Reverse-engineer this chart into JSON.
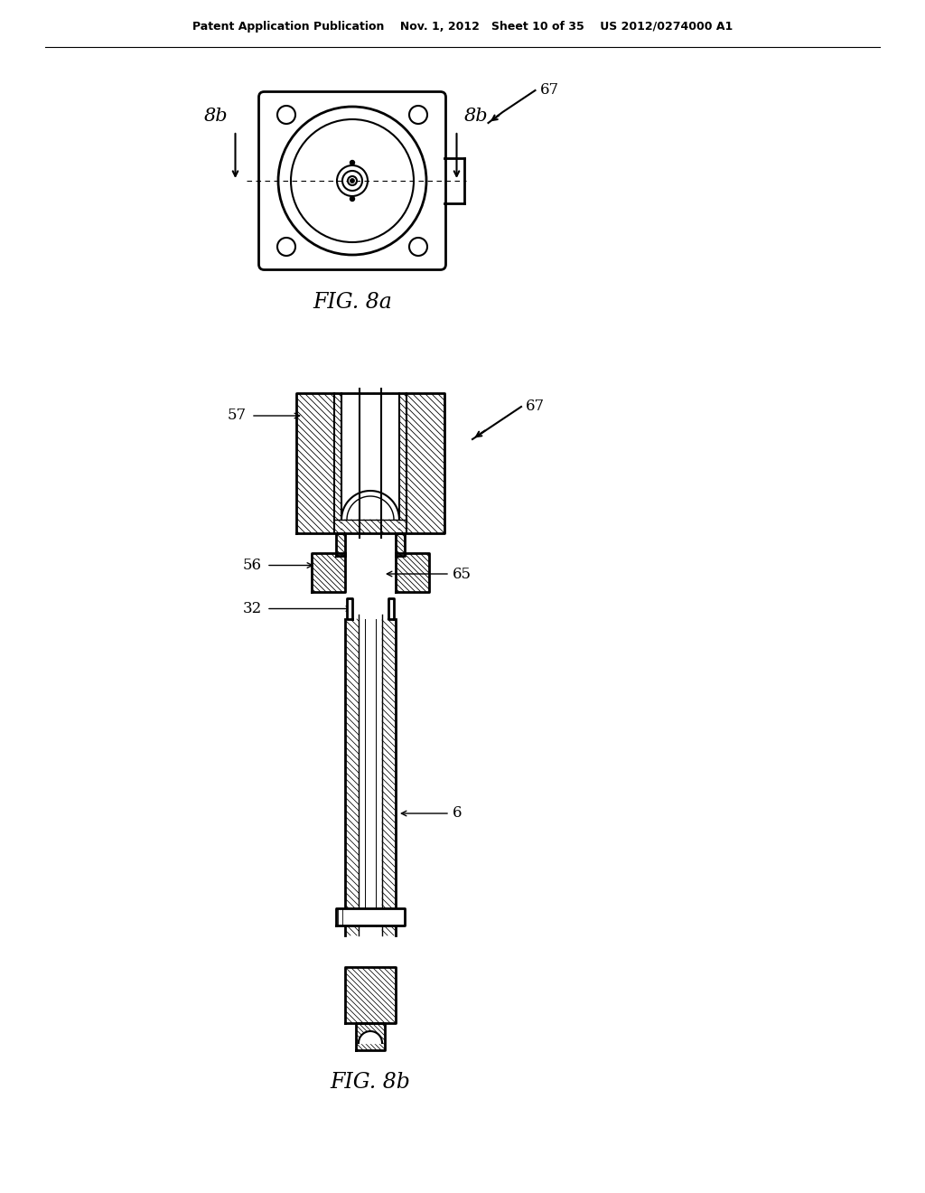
{
  "bg_color": "#ffffff",
  "line_color": "#000000",
  "header_text": "Patent Application Publication    Nov. 1, 2012   Sheet 10 of 35    US 2012/0274000 A1",
  "fig_8a_label": "FIG. 8a",
  "fig_8b_label": "FIG. 8b",
  "label_8b_left": "8b",
  "label_8b_right": "8b",
  "label_67_top": "67",
  "label_67_bot": "67",
  "label_57": "57",
  "label_65": "65",
  "label_56": "56",
  "label_32": "32",
  "label_6": "6"
}
